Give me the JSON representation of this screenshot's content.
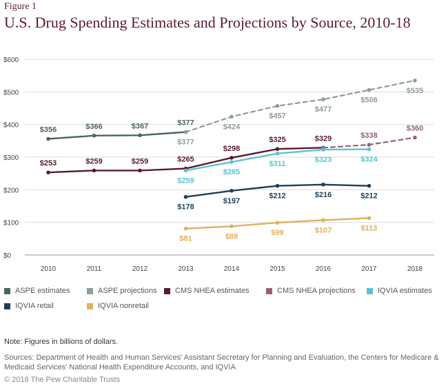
{
  "figure_label": "Figure 1",
  "note": "Note: Figures in billions of dollars.",
  "sources": "Sources: Department of Health and Human Services' Assistant Secretary for Planning and Evaluation, the Centers for Medicare & Medicaid Services' National Health Expenditure Accounts, and IQVIA",
  "copyright": "© 2018 The Pew Charitable Trusts",
  "chart_data": {
    "type": "line",
    "title": "U.S. Drug Spending Estimates and Projections by Source, 2010-18",
    "xlabel": "",
    "ylabel": "",
    "x": [
      2010,
      2011,
      2012,
      2013,
      2014,
      2015,
      2016,
      2017,
      2018
    ],
    "ylim": [
      0,
      600
    ],
    "yticks": [
      0,
      100,
      200,
      300,
      400,
      500,
      600
    ],
    "ytick_labels": [
      "$0",
      "$100",
      "$200",
      "$300",
      "$400",
      "$500",
      "$600"
    ],
    "grid": true,
    "legend_position": "bottom",
    "series": [
      {
        "name": "ASPE estimates",
        "color": "#4a6461",
        "dashed": false,
        "label_pos": "above",
        "x": [
          2010,
          2011,
          2012,
          2013
        ],
        "values": [
          356,
          366,
          367,
          377
        ],
        "labels": [
          "$356",
          "$366",
          "$367",
          "$377"
        ]
      },
      {
        "name": "ASPE projections",
        "color": "#8e9c9a",
        "dashed": true,
        "label_pos": "below",
        "x": [
          2013,
          2014,
          2015,
          2016,
          2017,
          2018
        ],
        "values": [
          377,
          424,
          457,
          477,
          506,
          535
        ],
        "labels": [
          "$377",
          "$424",
          "$457",
          "$477",
          "$506",
          "$535"
        ]
      },
      {
        "name": "CMS NHEA estimates",
        "color": "#5a1a32",
        "dashed": false,
        "label_pos": "above",
        "x": [
          2010,
          2011,
          2012,
          2013,
          2014,
          2015,
          2016
        ],
        "values": [
          253,
          259,
          259,
          265,
          298,
          325,
          329
        ],
        "labels": [
          "$253",
          "$259",
          "$259",
          "$265",
          "$298",
          "$325",
          "$329"
        ]
      },
      {
        "name": "CMS NHEA projections",
        "color": "#946379",
        "dashed": true,
        "label_pos": "above",
        "x": [
          2016,
          2017,
          2018
        ],
        "values": [
          329,
          338,
          360
        ],
        "labels": [
          "",
          "$338",
          "$360"
        ]
      },
      {
        "name": "IQVIA estimates",
        "color": "#5bc3d2",
        "dashed": false,
        "label_pos": "below",
        "x": [
          2013,
          2014,
          2015,
          2016,
          2017
        ],
        "values": [
          259,
          285,
          311,
          323,
          324
        ],
        "labels": [
          "$259",
          "$285",
          "$311",
          "$323",
          "$324"
        ]
      },
      {
        "name": "IQVIA retail",
        "color": "#1e3f5a",
        "dashed": false,
        "label_pos": "below",
        "x": [
          2013,
          2014,
          2015,
          2016,
          2017
        ],
        "values": [
          178,
          197,
          212,
          216,
          212
        ],
        "labels": [
          "$178",
          "$197",
          "$212",
          "$216",
          "$212"
        ]
      },
      {
        "name": "IQVIA nonretail",
        "color": "#e0b060",
        "dashed": false,
        "label_pos": "below",
        "x": [
          2013,
          2014,
          2015,
          2016,
          2017
        ],
        "values": [
          81,
          88,
          99,
          107,
          113
        ],
        "labels": [
          "$81",
          "$88",
          "$99",
          "$107",
          "$113"
        ]
      }
    ]
  }
}
